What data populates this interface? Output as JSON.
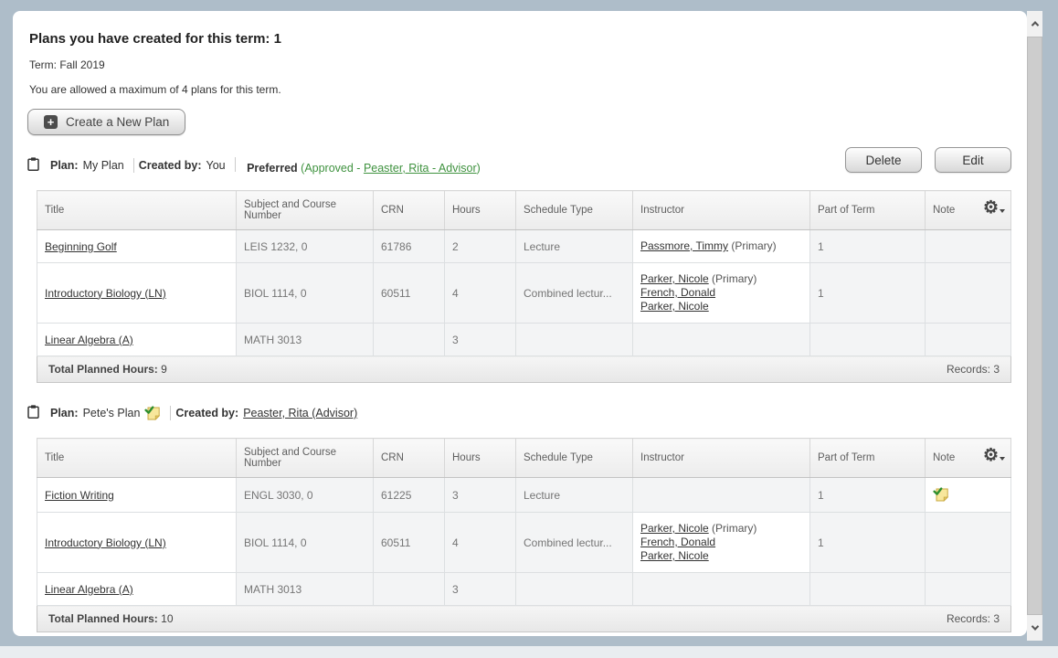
{
  "page": {
    "title": "Plans you have created for this term: 1",
    "term": "Term: Fall 2019",
    "max_note": "You are allowed a maximum of 4 plans for this term.",
    "create_button": "Create a New Plan"
  },
  "labels": {
    "plan": "Plan:",
    "created_by": "Created by:",
    "preferred": "Preferred",
    "total_hours": "Total Planned Hours:",
    "records": "Records:"
  },
  "icons": {
    "plus": "+",
    "gear": "⚙"
  },
  "colors": {
    "page_background": "#aebdc9",
    "approved_green": "#3f923f",
    "note_yellow": "#f8e79c",
    "link_dark": "#333333"
  },
  "plans": [
    {
      "name": "My Plan",
      "note_icon": false,
      "created_by": {
        "text": "You",
        "link": false
      },
      "preferred": {
        "prefix": "(Approved - ",
        "link_text": "Peaster, Rita - Advisor",
        "suffix": ")"
      },
      "actions": [
        "Delete",
        "Edit"
      ],
      "columns": [
        "Title",
        "Subject and Course Number",
        "CRN",
        "Hours",
        "Schedule Type",
        "Instructor",
        "Part of Term",
        "Note"
      ],
      "rows": [
        {
          "title": "Beginning Golf",
          "subject": "LEIS 1232, 0",
          "crn": "61786",
          "hours": "2",
          "schedule": "Lecture",
          "instructors": [
            {
              "name": "Passmore, Timmy",
              "suffix": " (Primary)"
            }
          ],
          "part_of_term": "1",
          "note_icon": false
        },
        {
          "title": "Introductory Biology (LN)",
          "subject": "BIOL 1114, 0",
          "crn": "60511",
          "hours": "4",
          "schedule": "Combined lectur...",
          "instructors": [
            {
              "name": "Parker, Nicole",
              "suffix": " (Primary)"
            },
            {
              "name": "French, Donald",
              "suffix": ""
            },
            {
              "name": "Parker, Nicole",
              "suffix": ""
            }
          ],
          "part_of_term": "1",
          "note_icon": false
        },
        {
          "title": "Linear Algebra (A)",
          "subject": "MATH 3013",
          "crn": "",
          "hours": "3",
          "schedule": "",
          "instructors": [],
          "part_of_term": "",
          "note_icon": false
        }
      ],
      "total_hours": "9",
      "records": "3"
    },
    {
      "name": "Pete's Plan",
      "note_icon": true,
      "created_by": {
        "text": "Peaster, Rita (Advisor)",
        "link": true
      },
      "preferred": null,
      "actions": [],
      "columns": [
        "Title",
        "Subject and Course Number",
        "CRN",
        "Hours",
        "Schedule Type",
        "Instructor",
        "Part of Term",
        "Note"
      ],
      "rows": [
        {
          "title": "Fiction Writing",
          "subject": "ENGL 3030, 0",
          "crn": "61225",
          "hours": "3",
          "schedule": "Lecture",
          "instructors": [],
          "part_of_term": "1",
          "note_icon": true
        },
        {
          "title": "Introductory Biology (LN)",
          "subject": "BIOL 1114, 0",
          "crn": "60511",
          "hours": "4",
          "schedule": "Combined lectur...",
          "instructors": [
            {
              "name": "Parker, Nicole",
              "suffix": " (Primary)"
            },
            {
              "name": "French, Donald",
              "suffix": ""
            },
            {
              "name": "Parker, Nicole",
              "suffix": ""
            }
          ],
          "part_of_term": "1",
          "note_icon": false
        },
        {
          "title": "Linear Algebra (A)",
          "subject": "MATH 3013",
          "crn": "",
          "hours": "3",
          "schedule": "",
          "instructors": [],
          "part_of_term": "",
          "note_icon": false
        }
      ],
      "total_hours": "10",
      "records": "3"
    }
  ]
}
